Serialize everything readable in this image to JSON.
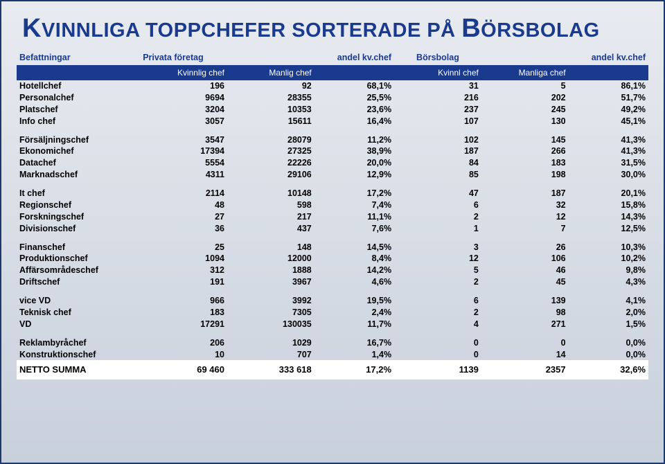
{
  "title": {
    "full": "KVINNLIGA TOPPCHEFER SORTERADE PÅ BÖRSBOLAG",
    "parts": [
      {
        "cap": "K",
        "rest": "VINNLIGA TOPPCHEFER SORTERADE PÅ "
      },
      {
        "cap": "B",
        "rest": "ÖRSBOLAG"
      }
    ]
  },
  "headers": {
    "top": [
      "Befattningar",
      "Privata företag",
      "",
      "andel kv.chef",
      "Börsbolag",
      "",
      "andel kv.chef"
    ],
    "sub": [
      "",
      "Kvinnlig chef",
      "Manlig chef",
      "",
      "Kvinnl chef",
      "Manliga chef",
      ""
    ]
  },
  "groups": [
    [
      {
        "pos": "Hotellchef",
        "kv": "196",
        "man": "92",
        "pct": "68,1%",
        "bk": "31",
        "bm": "5",
        "bpct": "86,1%"
      },
      {
        "pos": "Personalchef",
        "kv": "9694",
        "man": "28355",
        "pct": "25,5%",
        "bk": "216",
        "bm": "202",
        "bpct": "51,7%"
      },
      {
        "pos": "Platschef",
        "kv": "3204",
        "man": "10353",
        "pct": "23,6%",
        "bk": "237",
        "bm": "245",
        "bpct": "49,2%"
      },
      {
        "pos": "Info chef",
        "kv": "3057",
        "man": "15611",
        "pct": "16,4%",
        "bk": "107",
        "bm": "130",
        "bpct": "45,1%"
      }
    ],
    [
      {
        "pos": "Försäljningschef",
        "kv": "3547",
        "man": "28079",
        "pct": "11,2%",
        "bk": "102",
        "bm": "145",
        "bpct": "41,3%"
      },
      {
        "pos": "Ekonomichef",
        "kv": "17394",
        "man": "27325",
        "pct": "38,9%",
        "bk": "187",
        "bm": "266",
        "bpct": "41,3%"
      },
      {
        "pos": "Datachef",
        "kv": "5554",
        "man": "22226",
        "pct": "20,0%",
        "bk": "84",
        "bm": "183",
        "bpct": "31,5%"
      },
      {
        "pos": "Marknadschef",
        "kv": "4311",
        "man": "29106",
        "pct": "12,9%",
        "bk": "85",
        "bm": "198",
        "bpct": "30,0%"
      }
    ],
    [
      {
        "pos": "It chef",
        "kv": "2114",
        "man": "10148",
        "pct": "17,2%",
        "bk": "47",
        "bm": "187",
        "bpct": "20,1%"
      },
      {
        "pos": "Regionschef",
        "kv": "48",
        "man": "598",
        "pct": "7,4%",
        "bk": "6",
        "bm": "32",
        "bpct": "15,8%"
      },
      {
        "pos": "Forskningschef",
        "kv": "27",
        "man": "217",
        "pct": "11,1%",
        "bk": "2",
        "bm": "12",
        "bpct": "14,3%"
      },
      {
        "pos": "Divisionschef",
        "kv": "36",
        "man": "437",
        "pct": "7,6%",
        "bk": "1",
        "bm": "7",
        "bpct": "12,5%"
      }
    ],
    [
      {
        "pos": "Finanschef",
        "kv": "25",
        "man": "148",
        "pct": "14,5%",
        "bk": "3",
        "bm": "26",
        "bpct": "10,3%"
      },
      {
        "pos": "Produktionschef",
        "kv": "1094",
        "man": "12000",
        "pct": "8,4%",
        "bk": "12",
        "bm": "106",
        "bpct": "10,2%"
      },
      {
        "pos": "Affärsområdeschef",
        "kv": "312",
        "man": "1888",
        "pct": "14,2%",
        "bk": "5",
        "bm": "46",
        "bpct": "9,8%"
      },
      {
        "pos": "Driftschef",
        "kv": "191",
        "man": "3967",
        "pct": "4,6%",
        "bk": "2",
        "bm": "45",
        "bpct": "4,3%"
      }
    ],
    [
      {
        "pos": "vice VD",
        "kv": "966",
        "man": "3992",
        "pct": "19,5%",
        "bk": "6",
        "bm": "139",
        "bpct": "4,1%"
      },
      {
        "pos": "Teknisk chef",
        "kv": "183",
        "man": "7305",
        "pct": "2,4%",
        "bk": "2",
        "bm": "98",
        "bpct": "2,0%"
      },
      {
        "pos": "VD",
        "kv": "17291",
        "man": "130035",
        "pct": "11,7%",
        "bk": "4",
        "bm": "271",
        "bpct": "1,5%"
      }
    ],
    [
      {
        "pos": "Reklambyråchef",
        "kv": "206",
        "man": "1029",
        "pct": "16,7%",
        "bk": "0",
        "bm": "0",
        "bpct": "0,0%"
      },
      {
        "pos": "Konstruktionschef",
        "kv": "10",
        "man": "707",
        "pct": "1,4%",
        "bk": "0",
        "bm": "14",
        "bpct": "0,0%"
      }
    ]
  ],
  "footer": {
    "pos": "NETTO SUMMA",
    "kv": "69 460",
    "man": "333 618",
    "pct": "17,2%",
    "bk": "1139",
    "bm": "2357",
    "bpct": "32,6%"
  },
  "colors": {
    "headerbg": "#1a3a8e",
    "headerfg": "#ffffff",
    "titlecolor": "#1a3a8e",
    "footerbg": "#ffffff",
    "border": "#1a3a6e"
  }
}
